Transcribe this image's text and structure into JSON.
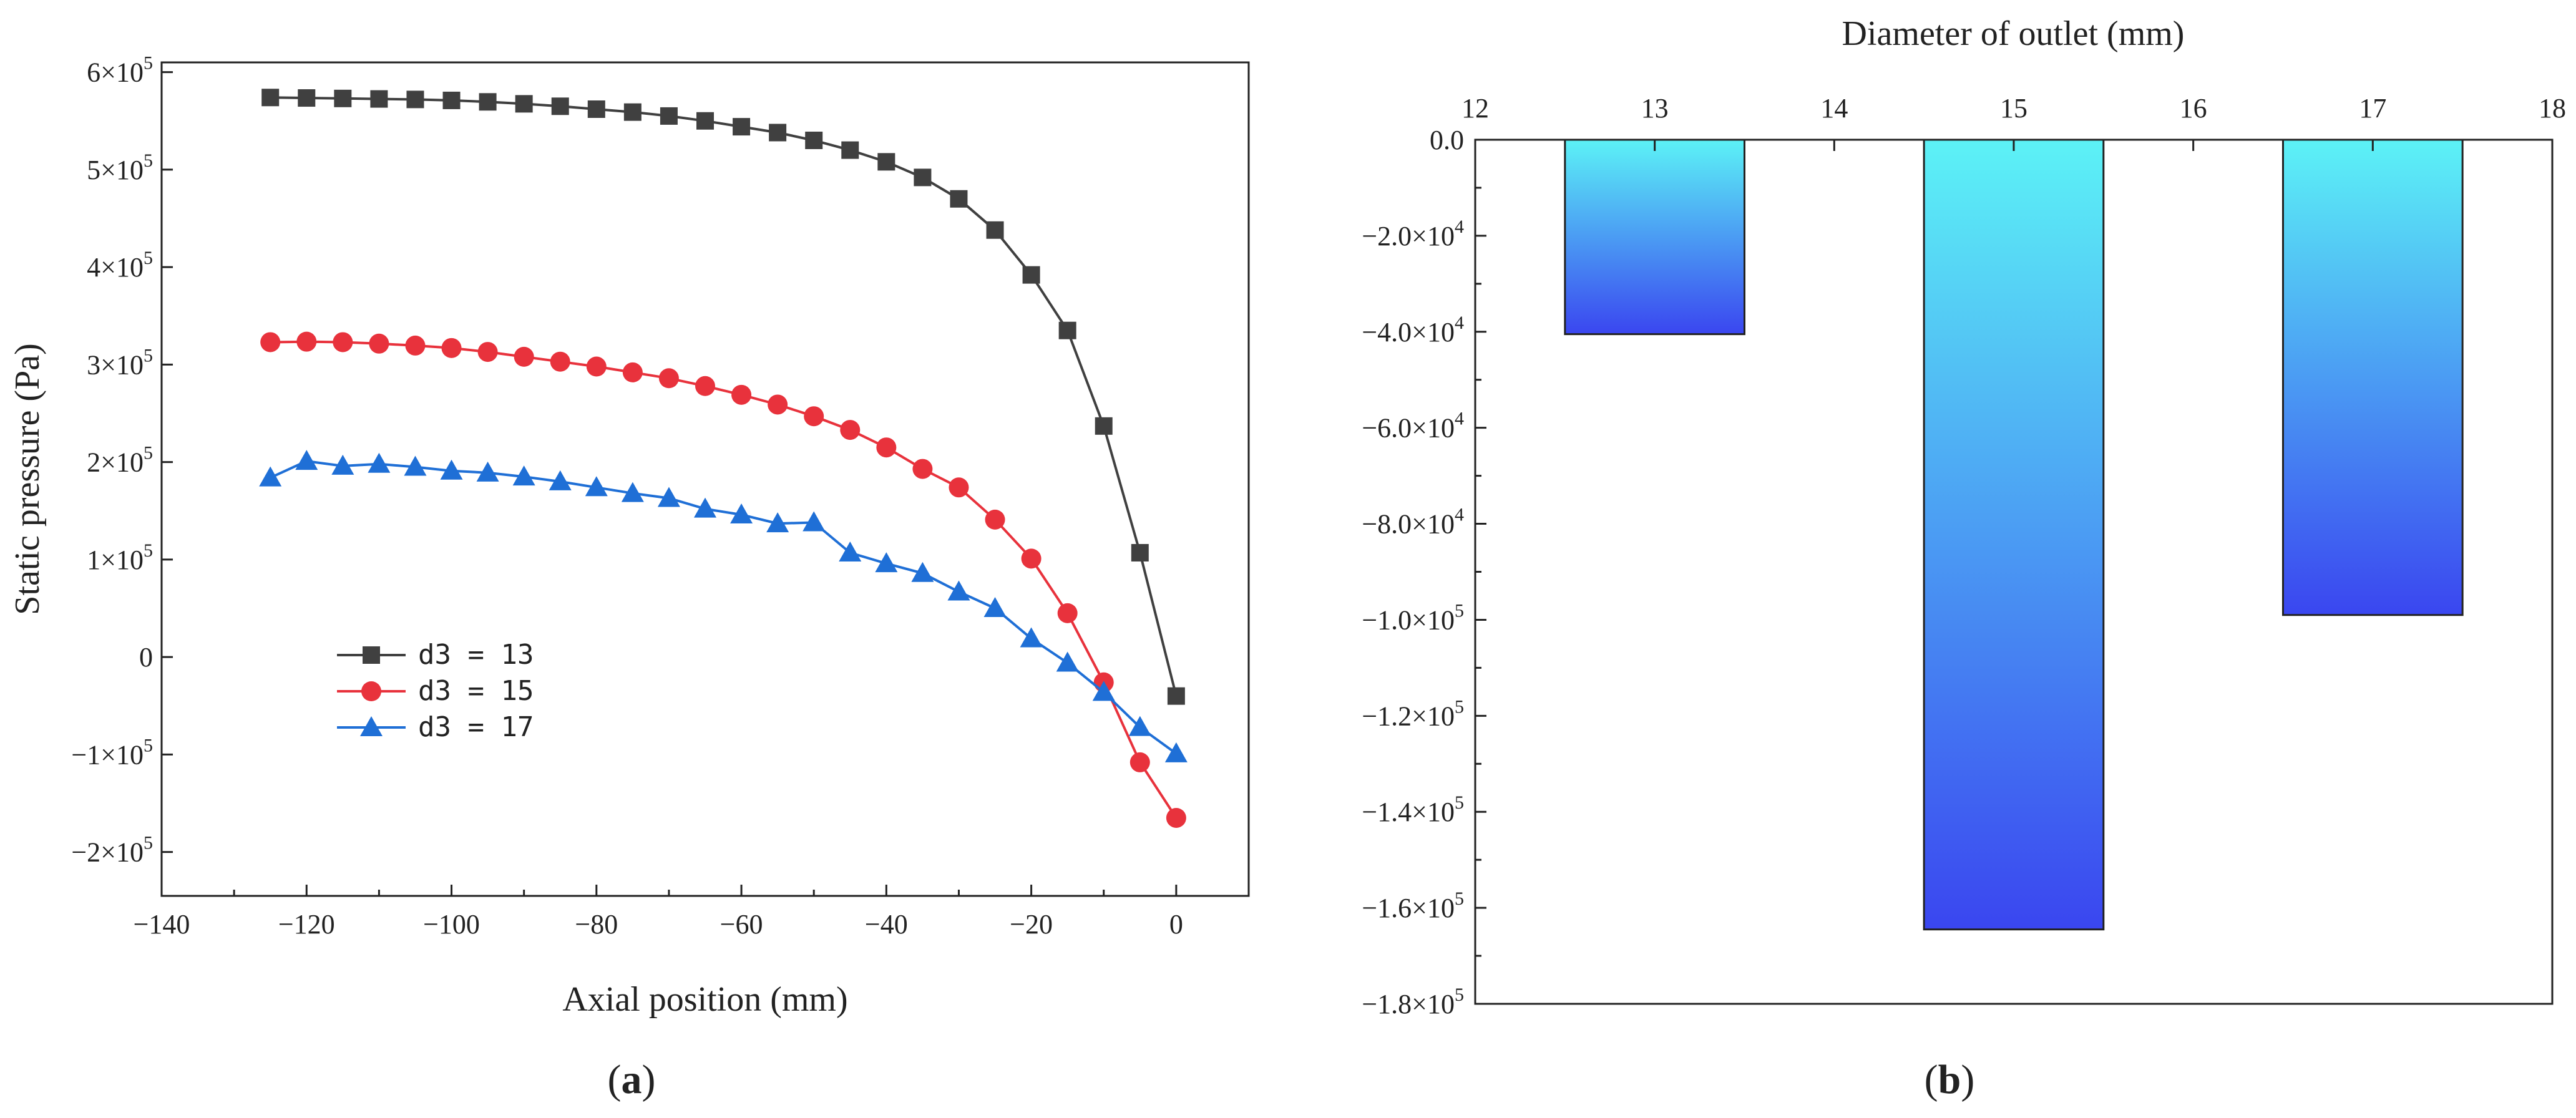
{
  "chart_data": [
    {
      "type": "line",
      "panel_label": "a",
      "xlabel": "Axial position (mm)",
      "ylabel": "Static pressure (Pa)",
      "xlim": [
        -140,
        10
      ],
      "ylim": [
        -245000,
        610000
      ],
      "x_ticks": [
        -140,
        -120,
        -100,
        -80,
        -60,
        -40,
        -20,
        0
      ],
      "x_tick_labels": [
        "−140",
        "−120",
        "−100",
        "−80",
        "−60",
        "−40",
        "−20",
        "0"
      ],
      "y_ticks": [
        {
          "value": 600000,
          "mantissa": "6×10",
          "exp": "5"
        },
        {
          "value": 500000,
          "mantissa": "5×10",
          "exp": "5"
        },
        {
          "value": 400000,
          "mantissa": "4×10",
          "exp": "5"
        },
        {
          "value": 300000,
          "mantissa": "3×10",
          "exp": "5"
        },
        {
          "value": 200000,
          "mantissa": "2×10",
          "exp": "5"
        },
        {
          "value": 100000,
          "mantissa": "1×10",
          "exp": "5"
        },
        {
          "value": 0,
          "mantissa": "0",
          "exp": ""
        },
        {
          "value": -100000,
          "mantissa": "−1×10",
          "exp": "5"
        },
        {
          "value": -200000,
          "mantissa": "−2×10",
          "exp": "5"
        }
      ],
      "legend_position": "lower-left",
      "x": [
        -125,
        -120,
        -115,
        -110,
        -105,
        -100,
        -95,
        -90,
        -85,
        -80,
        -75,
        -70,
        -65,
        -60,
        -55,
        -50,
        -45,
        -40,
        -35,
        -30,
        -25,
        -20,
        -15,
        -10,
        -5,
        0
      ],
      "series": [
        {
          "name": "d3 = 13",
          "color": "#404040",
          "marker": "square",
          "values": [
            574000,
            573500,
            573000,
            572500,
            572000,
            571000,
            569500,
            567500,
            565000,
            562000,
            559000,
            555000,
            550000,
            544000,
            538000,
            530000,
            520000,
            508000,
            492000,
            470000,
            438000,
            392000,
            335000,
            237000,
            107000,
            -40000
          ]
        },
        {
          "name": "d3 = 15",
          "color": "#e8323c",
          "marker": "circle",
          "values": [
            323000,
            323500,
            323000,
            321500,
            319500,
            317000,
            313000,
            308000,
            303000,
            298000,
            292000,
            286000,
            278000,
            269000,
            259000,
            247000,
            233000,
            215000,
            193000,
            174000,
            141000,
            101000,
            45000,
            -26000,
            -108000,
            -165000
          ]
        },
        {
          "name": "d3 = 17",
          "color": "#1f6fd6",
          "marker": "triangle",
          "values": [
            184000,
            201000,
            196000,
            198000,
            195000,
            191000,
            189000,
            185000,
            180000,
            174000,
            168000,
            163000,
            152000,
            146000,
            137000,
            138000,
            107000,
            96000,
            86000,
            67000,
            50000,
            19000,
            -6000,
            -36000,
            -72000,
            -99000
          ]
        }
      ]
    },
    {
      "type": "bar",
      "panel_label": "b",
      "xlabel": "Diameter of outlet (mm)",
      "xlabel_position": "top",
      "ylabel": "",
      "xlim": [
        12,
        18
      ],
      "ylim": [
        -180000,
        0
      ],
      "x_ticks": [
        12,
        13,
        14,
        15,
        16,
        17,
        18
      ],
      "x_tick_labels": [
        "12",
        "13",
        "14",
        "15",
        "16",
        "17",
        "18"
      ],
      "y_ticks": [
        {
          "value": 0,
          "mantissa": "0.0",
          "exp": ""
        },
        {
          "value": -20000,
          "mantissa": "−2.0×10",
          "exp": "4"
        },
        {
          "value": -40000,
          "mantissa": "−4.0×10",
          "exp": "4"
        },
        {
          "value": -60000,
          "mantissa": "−6.0×10",
          "exp": "4"
        },
        {
          "value": -80000,
          "mantissa": "−8.0×10",
          "exp": "4"
        },
        {
          "value": -100000,
          "mantissa": "−1.0×10",
          "exp": "5"
        },
        {
          "value": -120000,
          "mantissa": "−1.2×10",
          "exp": "5"
        },
        {
          "value": -140000,
          "mantissa": "−1.4×10",
          "exp": "5"
        },
        {
          "value": -160000,
          "mantissa": "−1.6×10",
          "exp": "5"
        },
        {
          "value": -180000,
          "mantissa": "−1.8×10",
          "exp": "5"
        }
      ],
      "categories": [
        13,
        15,
        17
      ],
      "values": [
        -40500,
        -164500,
        -99000
      ],
      "bar_gradient": [
        "#5cf2f6",
        "#3a46f0"
      ]
    }
  ]
}
